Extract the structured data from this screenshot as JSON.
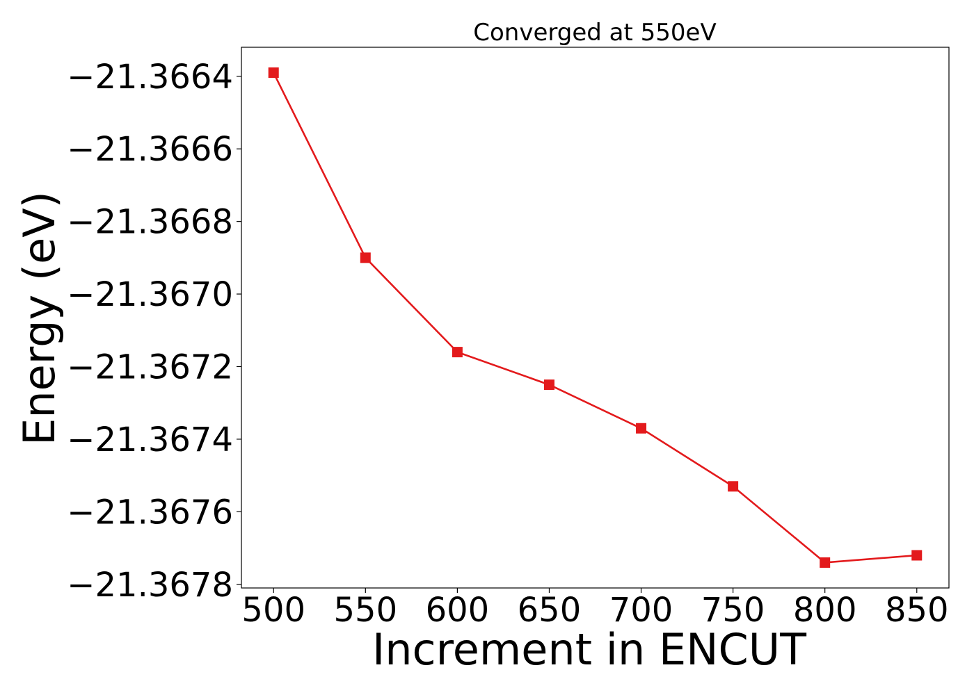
{
  "chart_data": {
    "type": "line",
    "title": "Converged at 550eV",
    "xlabel": "Increment in ENCUT",
    "ylabel": "Energy (eV)",
    "x": [
      500,
      550,
      600,
      650,
      700,
      750,
      800,
      850
    ],
    "series": [
      {
        "values": [
          -21.36639,
          -21.3669,
          -21.36716,
          -21.36725,
          -21.36737,
          -21.36753,
          -21.36774,
          -21.36772
        ],
        "color": "#e31a1c",
        "marker": "square"
      }
    ],
    "xticks": [
      500,
      550,
      600,
      650,
      700,
      750,
      800,
      850
    ],
    "xtick_labels": [
      "500",
      "550",
      "600",
      "650",
      "700",
      "750",
      "800",
      "850"
    ],
    "yticks": [
      -21.3664,
      -21.3666,
      -21.3668,
      -21.367,
      -21.3672,
      -21.3674,
      -21.3676,
      -21.3678
    ],
    "ytick_labels": [
      "−21.3664",
      "−21.3666",
      "−21.3668",
      "−21.3670",
      "−21.3672",
      "−21.3674",
      "−21.3676",
      "−21.3678"
    ],
    "xlim": [
      482.5,
      867.5
    ],
    "ylim": [
      -21.36781,
      -21.36632
    ],
    "grid": false,
    "legend": "none"
  }
}
